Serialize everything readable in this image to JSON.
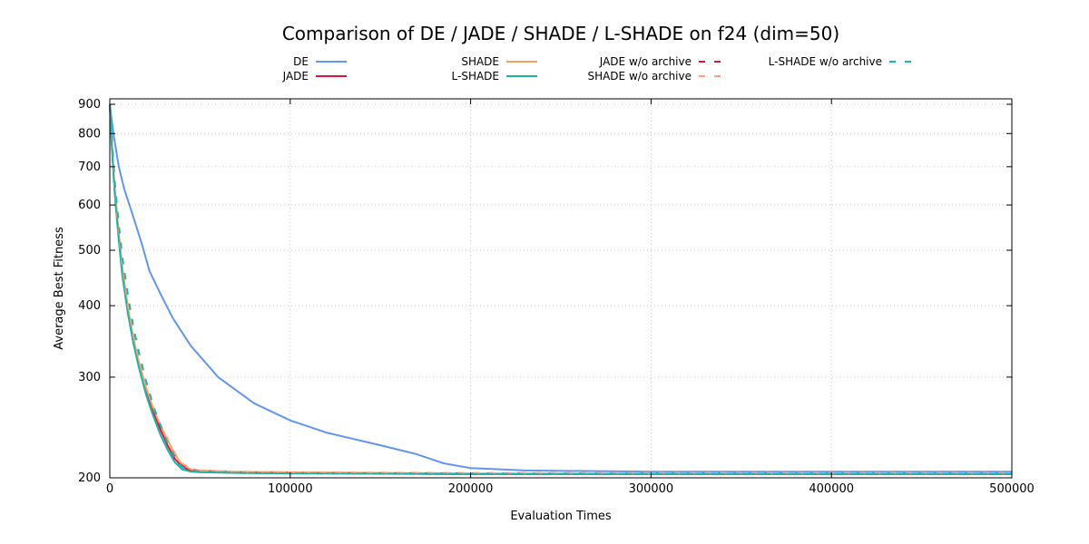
{
  "chart_data": {
    "type": "line",
    "title": "Comparison of DE / JADE / SHADE / L-SHADE on f24 (dim=50)",
    "xlabel": "Evaluation Times",
    "ylabel": "Average Best Fitness",
    "xlim": [
      0,
      500000
    ],
    "ylim": [
      200,
      920
    ],
    "yscale": "log",
    "grid": true,
    "legend_position": "top",
    "xticks": [
      0,
      100000,
      200000,
      300000,
      400000,
      500000
    ],
    "xtick_labels": [
      "0",
      "100000",
      "200000",
      "300000",
      "400000",
      "500000"
    ],
    "yticks": [
      200,
      300,
      400,
      500,
      600,
      700,
      800,
      900
    ],
    "ytick_labels": [
      "200",
      "300",
      "400",
      "500",
      "600",
      "700",
      "800",
      "900"
    ],
    "series": [
      {
        "name": "DE",
        "color": "#6495ed",
        "dash": "solid",
        "x": [
          0,
          2000,
          5000,
          8000,
          12000,
          18000,
          22000,
          28000,
          35000,
          45000,
          60000,
          80000,
          100000,
          120000,
          150000,
          170000,
          185000,
          200000,
          230000,
          300000,
          400000,
          500000
        ],
        "y": [
          900,
          800,
          700,
          640,
          585,
          510,
          460,
          420,
          380,
          340,
          300,
          270,
          252,
          240,
          228,
          220,
          212,
          208,
          206,
          205,
          205,
          205
        ]
      },
      {
        "name": "JADE",
        "color": "#dc143c",
        "dash": "solid",
        "x": [
          0,
          1000,
          2000,
          3000,
          5000,
          7000,
          10000,
          13000,
          16000,
          20000,
          24000,
          28000,
          32000,
          36000,
          40000,
          45000,
          50000,
          70000,
          100000,
          200000,
          300000,
          400000,
          500000
        ],
        "y": [
          900,
          780,
          690,
          620,
          530,
          460,
          395,
          350,
          318,
          285,
          262,
          243,
          228,
          216,
          209,
          206,
          205.5,
          204.5,
          204,
          203,
          203,
          203,
          203
        ]
      },
      {
        "name": "SHADE",
        "color": "#f4a460",
        "dash": "solid",
        "x": [
          0,
          1000,
          2000,
          3000,
          5000,
          7000,
          10000,
          13000,
          16000,
          20000,
          24000,
          28000,
          32000,
          36000,
          40000,
          45000,
          50000,
          70000,
          100000,
          200000,
          300000,
          400000,
          500000
        ],
        "y": [
          900,
          780,
          690,
          625,
          535,
          465,
          398,
          352,
          320,
          288,
          265,
          247,
          233,
          220,
          211,
          207,
          206,
          205,
          204.5,
          203.5,
          203.5,
          203.5,
          203.5
        ]
      },
      {
        "name": "L-SHADE",
        "color": "#20b2aa",
        "dash": "solid",
        "x": [
          0,
          1000,
          2000,
          3000,
          5000,
          7000,
          10000,
          13000,
          16000,
          20000,
          24000,
          28000,
          32000,
          36000,
          40000,
          45000,
          50000,
          70000,
          100000,
          200000,
          300000,
          400000,
          500000
        ],
        "y": [
          900,
          770,
          680,
          610,
          520,
          450,
          388,
          345,
          313,
          280,
          257,
          238,
          224,
          213,
          207,
          205,
          204.5,
          204,
          203.5,
          203,
          203,
          203,
          203
        ]
      },
      {
        "name": "JADE w/o archive",
        "color": "#dc143c",
        "dash": "dashed",
        "x": [
          0,
          1000,
          2000,
          3000,
          5000,
          7000,
          10000,
          13000,
          16000,
          20000,
          24000,
          28000,
          32000,
          36000,
          40000,
          45000,
          50000,
          70000,
          100000,
          200000,
          300000,
          400000,
          500000
        ],
        "y": [
          900,
          790,
          700,
          635,
          545,
          478,
          410,
          362,
          328,
          292,
          266,
          246,
          230,
          218,
          210,
          206.5,
          205.5,
          204.5,
          204,
          203.5,
          203.5,
          203.5,
          203.5
        ]
      },
      {
        "name": "SHADE w/o archive",
        "color": "#ffa07a",
        "dash": "dashed",
        "x": [
          0,
          1000,
          2000,
          3000,
          5000,
          7000,
          10000,
          13000,
          16000,
          20000,
          24000,
          28000,
          32000,
          36000,
          40000,
          45000,
          50000,
          70000,
          100000,
          200000,
          300000,
          400000,
          500000
        ],
        "y": [
          900,
          785,
          695,
          630,
          540,
          470,
          402,
          356,
          323,
          290,
          266,
          248,
          234,
          221,
          212,
          207.5,
          206,
          205,
          204.5,
          204,
          204,
          204,
          204
        ]
      },
      {
        "name": "L-SHADE w/o archive",
        "color": "#20b2aa",
        "dash": "dashed",
        "x": [
          0,
          1000,
          2000,
          3000,
          5000,
          7000,
          10000,
          13000,
          16000,
          20000,
          24000,
          28000,
          32000,
          36000,
          40000,
          45000,
          50000,
          70000,
          100000,
          200000,
          300000,
          400000,
          500000
        ],
        "y": [
          900,
          800,
          710,
          645,
          555,
          485,
          418,
          368,
          333,
          296,
          268,
          247,
          230,
          217,
          209,
          206,
          205,
          204,
          203.5,
          203,
          203,
          203,
          203
        ]
      }
    ]
  }
}
